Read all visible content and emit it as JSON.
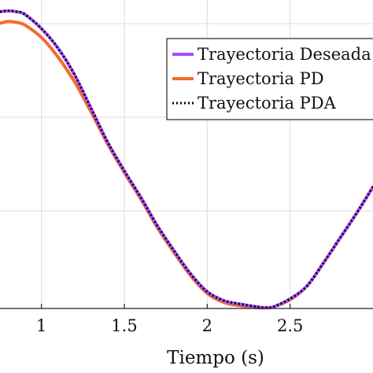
{
  "chart_data": {
    "type": "line",
    "title": "",
    "xlabel": "Tiempo (s)",
    "ylabel": "",
    "xlim": [
      0.75,
      3.0
    ],
    "ylim": [
      0,
      1.7
    ],
    "x_ticks": [
      1,
      1.5,
      2,
      2.5
    ],
    "x_tick_labels": [
      "1",
      "1.5",
      "2",
      "2.5"
    ],
    "grid": true,
    "legend_position": "top-right",
    "series": [
      {
        "name": "Trayectoria Deseada",
        "color": "#a64dff",
        "style": "solid",
        "x": [
          0.75,
          0.8,
          0.85,
          0.9,
          1.0,
          1.1,
          1.2,
          1.3,
          1.4,
          1.5,
          1.6,
          1.7,
          1.8,
          1.9,
          2.0,
          2.1,
          2.2,
          2.3,
          2.35,
          2.4,
          2.5,
          2.6,
          2.7,
          2.8,
          2.9,
          3.0
        ],
        "y": [
          1.665,
          1.67,
          1.665,
          1.65,
          1.57,
          1.46,
          1.31,
          1.12,
          0.93,
          0.77,
          0.62,
          0.46,
          0.32,
          0.19,
          0.09,
          0.04,
          0.02,
          0.005,
          0.0,
          0.005,
          0.05,
          0.12,
          0.25,
          0.39,
          0.53,
          0.68
        ]
      },
      {
        "name": "Trayectoria PD",
        "color": "#f26b2c",
        "style": "solid",
        "x": [
          0.75,
          0.8,
          0.85,
          0.9,
          1.0,
          1.1,
          1.2,
          1.3,
          1.4,
          1.5,
          1.6,
          1.7,
          1.8,
          1.9,
          2.0,
          2.1,
          2.2,
          2.3,
          2.35,
          2.4,
          2.5,
          2.6,
          2.7,
          2.8,
          2.9,
          3.0
        ],
        "y": [
          1.6,
          1.61,
          1.605,
          1.59,
          1.52,
          1.41,
          1.27,
          1.1,
          0.92,
          0.76,
          0.61,
          0.45,
          0.31,
          0.18,
          0.08,
          0.03,
          0.01,
          0.0,
          0.0,
          0.005,
          0.045,
          0.12,
          0.25,
          0.39,
          0.53,
          0.68
        ]
      },
      {
        "name": "Trayectoria PDA",
        "color": "#000000",
        "style": "dotted",
        "x": [
          0.75,
          0.8,
          0.85,
          0.9,
          1.0,
          1.1,
          1.2,
          1.3,
          1.4,
          1.5,
          1.6,
          1.7,
          1.8,
          1.9,
          2.0,
          2.1,
          2.2,
          2.3,
          2.35,
          2.4,
          2.5,
          2.6,
          2.7,
          2.8,
          2.9,
          3.0
        ],
        "y": [
          1.665,
          1.67,
          1.665,
          1.65,
          1.57,
          1.46,
          1.31,
          1.12,
          0.93,
          0.77,
          0.62,
          0.46,
          0.32,
          0.19,
          0.09,
          0.04,
          0.02,
          0.005,
          0.0,
          0.005,
          0.05,
          0.12,
          0.25,
          0.39,
          0.53,
          0.68
        ]
      }
    ]
  }
}
